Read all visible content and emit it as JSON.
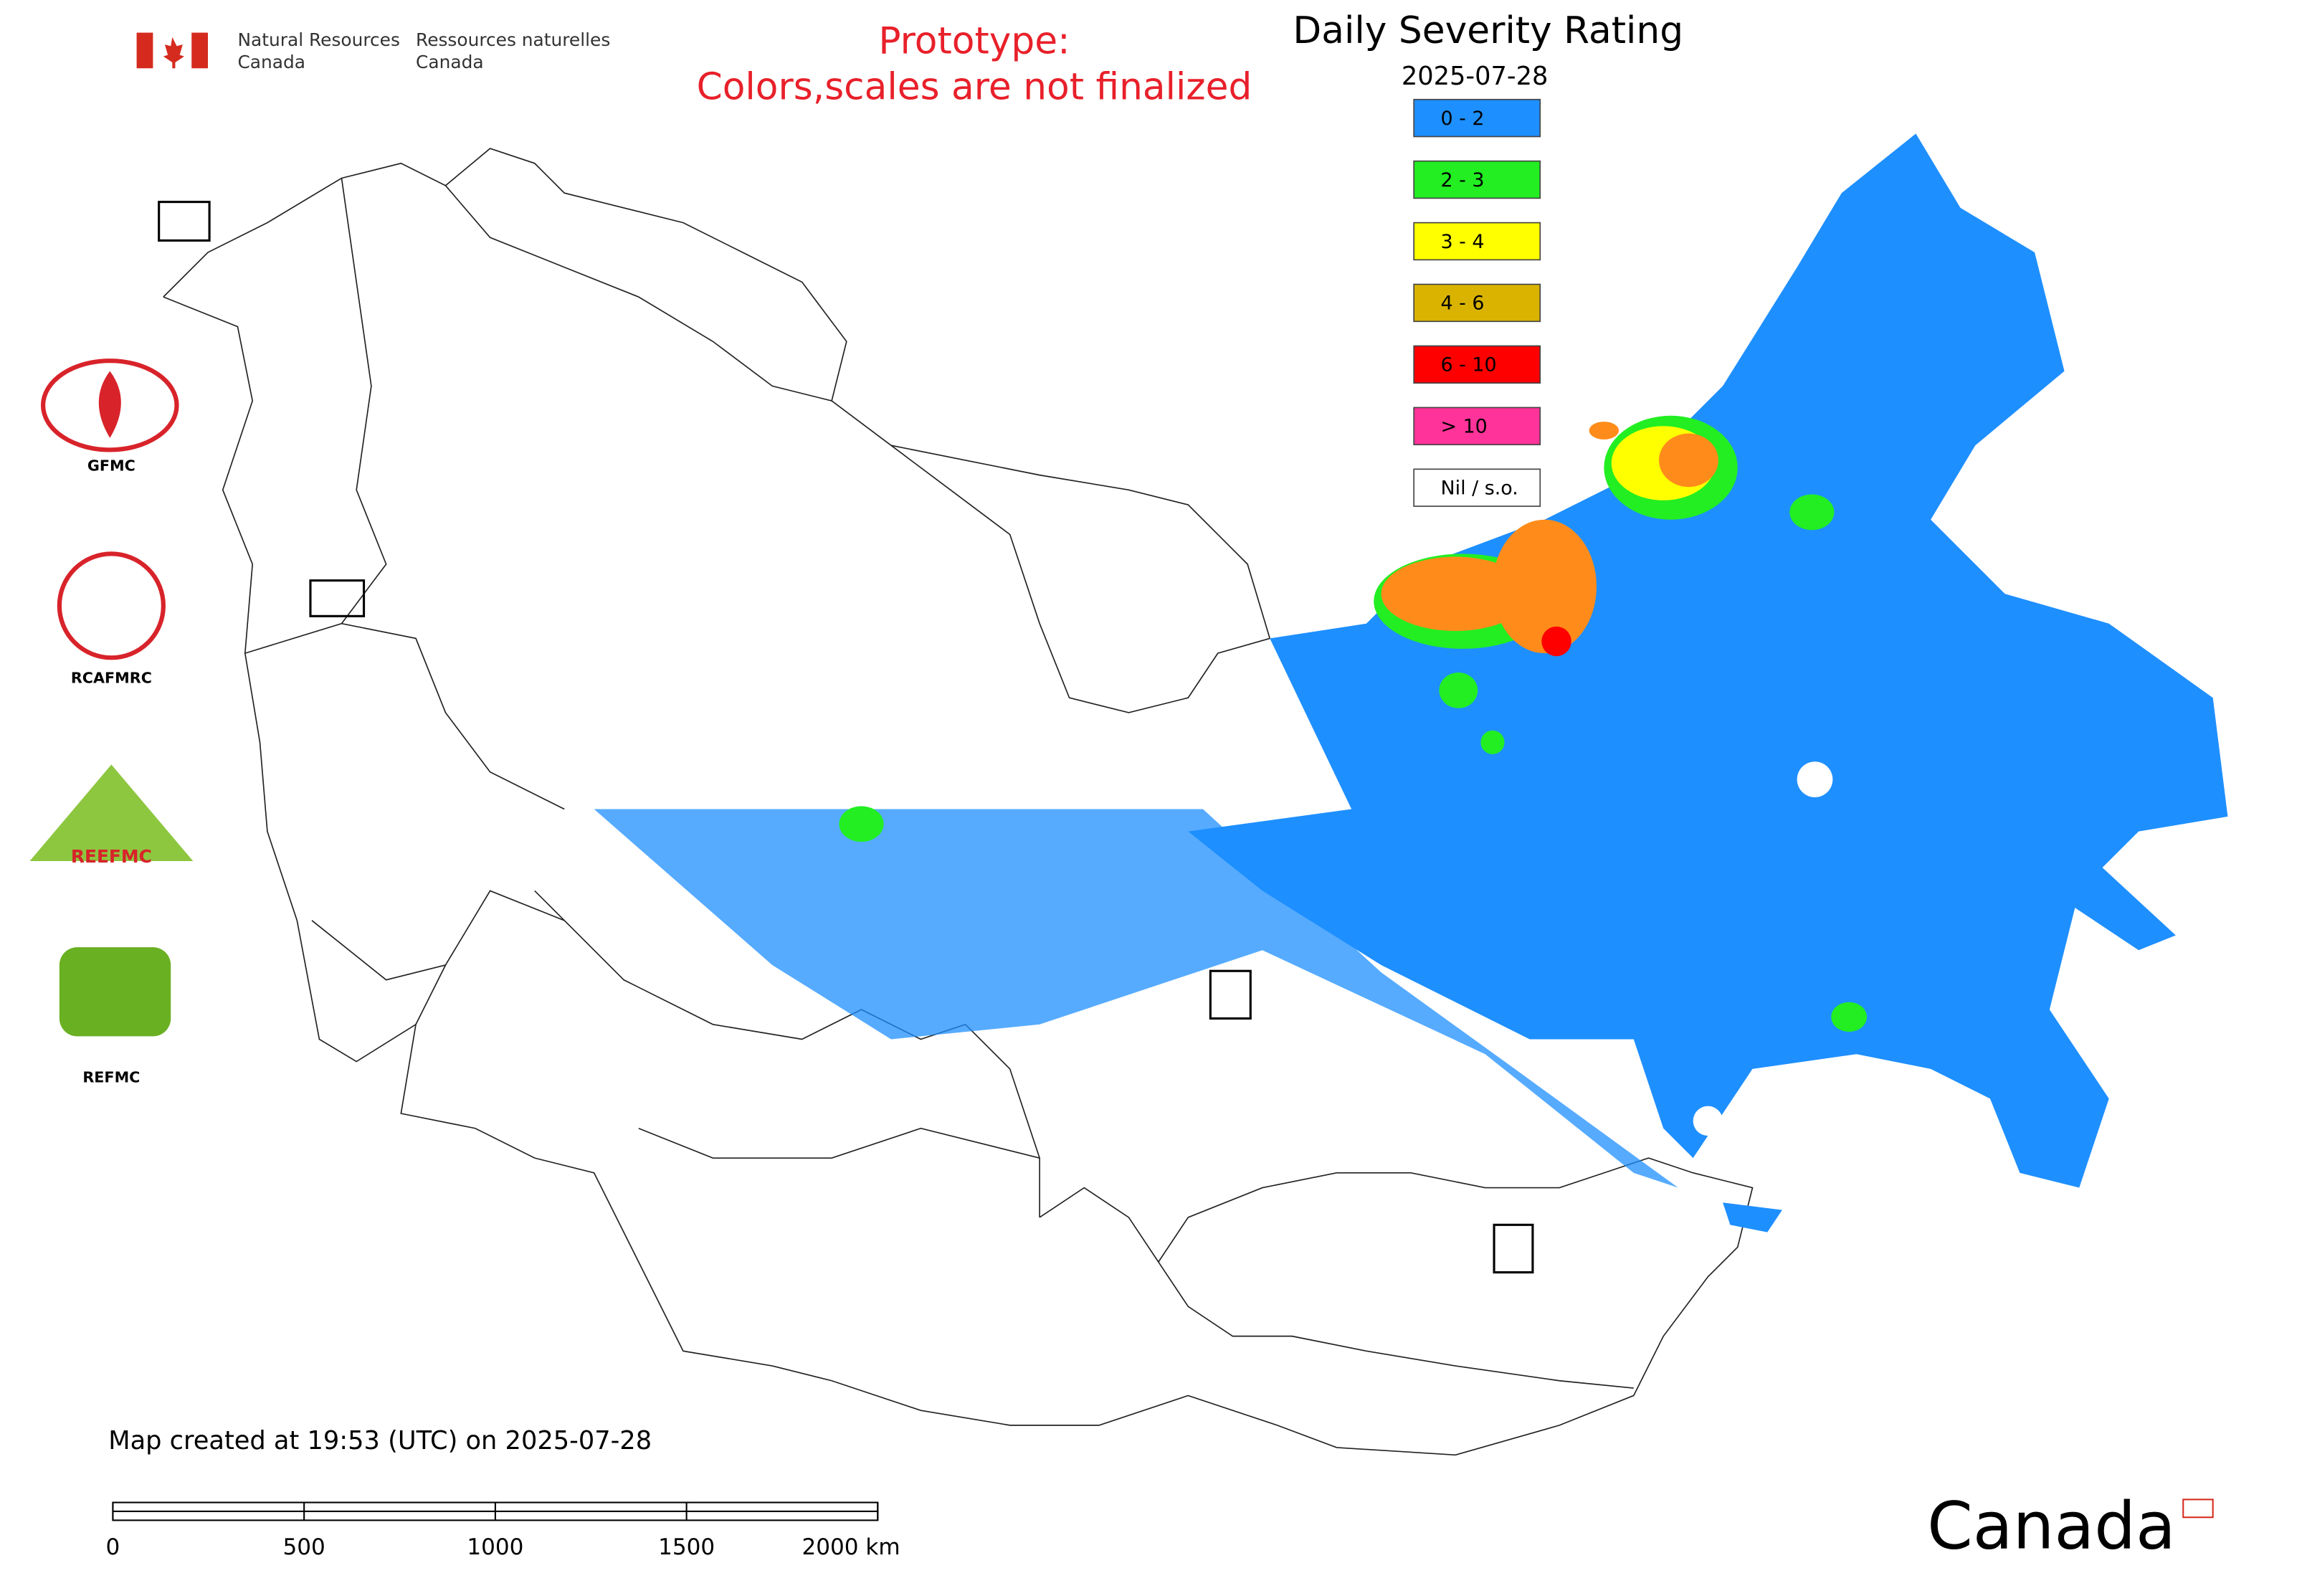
{
  "header": {
    "agency_en": [
      "Natural Resources",
      "Canada"
    ],
    "agency_fr": [
      "Ressources naturelles",
      "Canada"
    ]
  },
  "notice": [
    "Prototype:",
    "Colors,scales are not finalized"
  ],
  "title": "Daily Severity Rating",
  "date": "2025-07-28",
  "legend": [
    {
      "label": "0 - 2",
      "color": "#1e8fff"
    },
    {
      "label": "2 - 3",
      "color": "#22ee22"
    },
    {
      "label": "3 - 4",
      "color": "#ffff00"
    },
    {
      "label": "4 - 6",
      "color": "#d9b300"
    },
    {
      "label": "6 - 10",
      "color": "#ff0000"
    },
    {
      "label": "> 10",
      "color": "#ff3399"
    },
    {
      "label": "Nil / s.o.",
      "color": "#ffffff"
    }
  ],
  "partners": [
    "GFMC",
    "RCAFMRC",
    "REEFMC",
    "REFMC"
  ],
  "footer": {
    "created": "Map created at 19:53 (UTC) on 2025-07-28",
    "scale": [
      "0",
      "500",
      "1000",
      "1500",
      "2000 km"
    ]
  },
  "wordmark": "Canada"
}
